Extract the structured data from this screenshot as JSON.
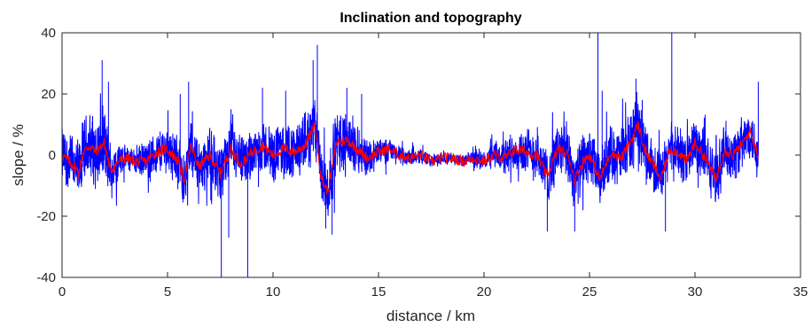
{
  "chart_data": {
    "type": "line",
    "title": "Inclination and topography",
    "xlabel": "distance / km",
    "ylabel": "slope / %",
    "xlim": [
      0,
      35
    ],
    "ylim": [
      -40,
      40
    ],
    "x_ticks": [
      0,
      5,
      10,
      15,
      20,
      25,
      30,
      35
    ],
    "y_ticks": [
      -40,
      -20,
      0,
      20,
      40
    ],
    "x_tick_labels": [
      "0",
      "5",
      "10",
      "15",
      "20",
      "25",
      "30",
      "35"
    ],
    "y_tick_labels": [
      "-40",
      "-20",
      "0",
      "20",
      "40"
    ],
    "grid": false,
    "box": true,
    "data_extent_x": [
      0,
      33
    ],
    "series": [
      {
        "color": "#0000ff",
        "description_shape": "noisy slope signal",
        "sample_spacing_km": 0.01,
        "envelope": [
          {
            "x": 0,
            "amp": 9
          },
          {
            "x": 1,
            "amp": 11
          },
          {
            "x": 2,
            "amp": 12
          },
          {
            "x": 3,
            "amp": 4
          },
          {
            "x": 4,
            "amp": 6
          },
          {
            "x": 5,
            "amp": 8
          },
          {
            "x": 6,
            "amp": 9
          },
          {
            "x": 7,
            "amp": 9
          },
          {
            "x": 8,
            "amp": 9
          },
          {
            "x": 9,
            "amp": 8
          },
          {
            "x": 10,
            "amp": 9
          },
          {
            "x": 11,
            "amp": 9
          },
          {
            "x": 12,
            "amp": 11
          },
          {
            "x": 13,
            "amp": 11
          },
          {
            "x": 14,
            "amp": 8
          },
          {
            "x": 15,
            "amp": 5
          },
          {
            "x": 16,
            "amp": 3
          },
          {
            "x": 17,
            "amp": 2.5
          },
          {
            "x": 18,
            "amp": 2
          },
          {
            "x": 19,
            "amp": 2
          },
          {
            "x": 20,
            "amp": 3
          },
          {
            "x": 21,
            "amp": 6
          },
          {
            "x": 22,
            "amp": 8
          },
          {
            "x": 23,
            "amp": 9
          },
          {
            "x": 24,
            "amp": 10
          },
          {
            "x": 25,
            "amp": 9
          },
          {
            "x": 26,
            "amp": 9
          },
          {
            "x": 27,
            "amp": 11
          },
          {
            "x": 28,
            "amp": 9
          },
          {
            "x": 29,
            "amp": 9
          },
          {
            "x": 30,
            "amp": 9
          },
          {
            "x": 31,
            "amp": 9
          },
          {
            "x": 32,
            "amp": 9
          },
          {
            "x": 33,
            "amp": 8
          }
        ],
        "spikes": [
          {
            "x": 1.9,
            "y": 31
          },
          {
            "x": 2.2,
            "y": 24
          },
          {
            "x": 5.6,
            "y": 20
          },
          {
            "x": 6.0,
            "y": 24
          },
          {
            "x": 7.55,
            "y": -40
          },
          {
            "x": 7.9,
            "y": -27
          },
          {
            "x": 8.8,
            "y": -40
          },
          {
            "x": 9.5,
            "y": 22
          },
          {
            "x": 10.6,
            "y": 21
          },
          {
            "x": 11.9,
            "y": 31
          },
          {
            "x": 12.1,
            "y": 36
          },
          {
            "x": 12.5,
            "y": -24
          },
          {
            "x": 12.8,
            "y": -26
          },
          {
            "x": 13.5,
            "y": 22
          },
          {
            "x": 14.2,
            "y": 20
          },
          {
            "x": 23.0,
            "y": -25
          },
          {
            "x": 24.3,
            "y": -25
          },
          {
            "x": 25.4,
            "y": 40
          },
          {
            "x": 25.6,
            "y": 21
          },
          {
            "x": 27.2,
            "y": 25
          },
          {
            "x": 27.5,
            "y": 18
          },
          {
            "x": 28.6,
            "y": -25
          },
          {
            "x": 28.9,
            "y": 40
          },
          {
            "x": 33.0,
            "y": 24
          }
        ]
      },
      {
        "color": "#ff0000",
        "description_shape": "smoothed slope",
        "points": [
          {
            "x": 0,
            "y": 0
          },
          {
            "x": 0.5,
            "y": -3
          },
          {
            "x": 0.8,
            "y": -6
          },
          {
            "x": 1.0,
            "y": 1
          },
          {
            "x": 1.3,
            "y": 3
          },
          {
            "x": 1.6,
            "y": 1
          },
          {
            "x": 2.0,
            "y": 4
          },
          {
            "x": 2.3,
            "y": -5
          },
          {
            "x": 2.7,
            "y": -2
          },
          {
            "x": 3.0,
            "y": -1
          },
          {
            "x": 3.5,
            "y": -2
          },
          {
            "x": 4.0,
            "y": -2
          },
          {
            "x": 4.5,
            "y": 1
          },
          {
            "x": 5.0,
            "y": 2
          },
          {
            "x": 5.5,
            "y": -2
          },
          {
            "x": 5.8,
            "y": -8
          },
          {
            "x": 6.1,
            "y": 3
          },
          {
            "x": 6.5,
            "y": -4
          },
          {
            "x": 7.0,
            "y": 0
          },
          {
            "x": 7.5,
            "y": -6
          },
          {
            "x": 8.0,
            "y": 2
          },
          {
            "x": 8.5,
            "y": -3
          },
          {
            "x": 9.0,
            "y": 1
          },
          {
            "x": 9.5,
            "y": 3
          },
          {
            "x": 10.0,
            "y": 0
          },
          {
            "x": 10.5,
            "y": 2
          },
          {
            "x": 11.0,
            "y": 1
          },
          {
            "x": 11.5,
            "y": 3
          },
          {
            "x": 12.0,
            "y": 10
          },
          {
            "x": 12.3,
            "y": -8
          },
          {
            "x": 12.6,
            "y": -12
          },
          {
            "x": 13.0,
            "y": 4
          },
          {
            "x": 13.5,
            "y": 5
          },
          {
            "x": 14.0,
            "y": 2
          },
          {
            "x": 14.5,
            "y": -1
          },
          {
            "x": 15.0,
            "y": 1
          },
          {
            "x": 15.5,
            "y": 2
          },
          {
            "x": 16.0,
            "y": 0
          },
          {
            "x": 16.5,
            "y": -1
          },
          {
            "x": 17.0,
            "y": 0
          },
          {
            "x": 17.5,
            "y": -2
          },
          {
            "x": 18.0,
            "y": -1
          },
          {
            "x": 18.5,
            "y": -1
          },
          {
            "x": 19.0,
            "y": -2
          },
          {
            "x": 19.5,
            "y": -1
          },
          {
            "x": 20.0,
            "y": -2
          },
          {
            "x": 20.5,
            "y": 0
          },
          {
            "x": 21.0,
            "y": -1
          },
          {
            "x": 21.5,
            "y": 2
          },
          {
            "x": 22.0,
            "y": 1
          },
          {
            "x": 22.5,
            "y": 0
          },
          {
            "x": 23.0,
            "y": -7
          },
          {
            "x": 23.5,
            "y": 2
          },
          {
            "x": 24.0,
            "y": 0
          },
          {
            "x": 24.3,
            "y": -8
          },
          {
            "x": 24.7,
            "y": -2
          },
          {
            "x": 25.0,
            "y": 0
          },
          {
            "x": 25.5,
            "y": -8
          },
          {
            "x": 26.0,
            "y": 1
          },
          {
            "x": 26.5,
            "y": -1
          },
          {
            "x": 27.0,
            "y": 5
          },
          {
            "x": 27.3,
            "y": 10
          },
          {
            "x": 27.6,
            "y": 2
          },
          {
            "x": 28.0,
            "y": -3
          },
          {
            "x": 28.4,
            "y": -8
          },
          {
            "x": 28.8,
            "y": 2
          },
          {
            "x": 29.2,
            "y": 1
          },
          {
            "x": 29.6,
            "y": -2
          },
          {
            "x": 30.0,
            "y": 4
          },
          {
            "x": 30.5,
            "y": -1
          },
          {
            "x": 31.0,
            "y": -8
          },
          {
            "x": 31.4,
            "y": 2
          },
          {
            "x": 31.8,
            "y": 0
          },
          {
            "x": 32.3,
            "y": 4
          },
          {
            "x": 32.6,
            "y": 8
          },
          {
            "x": 33.0,
            "y": 0
          }
        ]
      }
    ]
  }
}
